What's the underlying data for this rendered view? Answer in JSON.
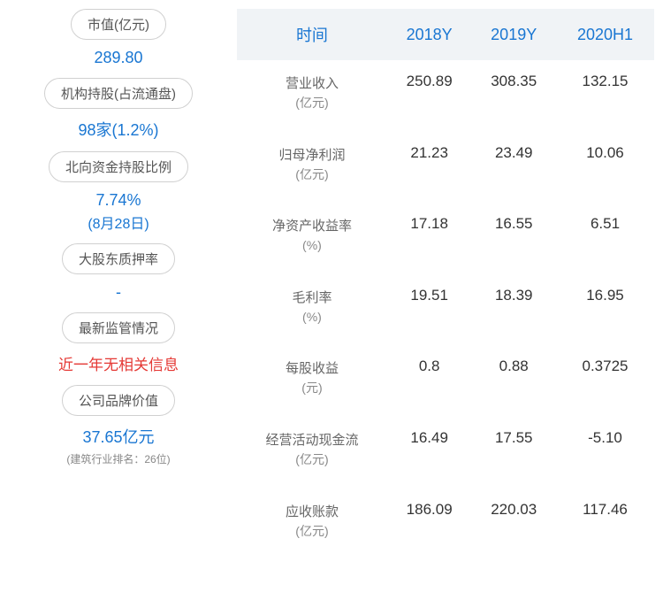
{
  "left_panel": {
    "market_cap": {
      "label": "市值(亿元)",
      "value": "289.80"
    },
    "inst_holding": {
      "label": "机构持股(占流通盘)",
      "value": "98家(1.2%)"
    },
    "north_capital": {
      "label": "北向资金持股比例",
      "value": "7.74%",
      "sub": "(8月28日)"
    },
    "pledge_rate": {
      "label": "大股东质押率",
      "value": "-"
    },
    "regulatory": {
      "label": "最新监管情况",
      "value": "近一年无相关信息"
    },
    "brand_value": {
      "label": "公司品牌价值",
      "value": "37.65亿元",
      "footnote": "(建筑行业排名：26位)"
    }
  },
  "table": {
    "header": {
      "col0": "时间",
      "col1": "2018Y",
      "col2": "2019Y",
      "col3": "2020H1"
    },
    "header_color": "#1976d2",
    "header_bg": "#f0f3f6",
    "rows": [
      {
        "label": "营业收入",
        "unit": "(亿元)",
        "v1": "250.89",
        "v2": "308.35",
        "v3": "132.15"
      },
      {
        "label": "归母净利润",
        "unit": "(亿元)",
        "v1": "21.23",
        "v2": "23.49",
        "v3": "10.06"
      },
      {
        "label": "净资产收益率",
        "unit": "(%)",
        "v1": "17.18",
        "v2": "16.55",
        "v3": "6.51"
      },
      {
        "label": "毛利率",
        "unit": "(%)",
        "v1": "19.51",
        "v2": "18.39",
        "v3": "16.95"
      },
      {
        "label": "每股收益",
        "unit": "(元)",
        "v1": "0.8",
        "v2": "0.88",
        "v3": "0.3725"
      },
      {
        "label": "经营活动现金流",
        "unit": "(亿元)",
        "v1": "16.49",
        "v2": "17.55",
        "v3": "-5.10"
      },
      {
        "label": "应收账款",
        "unit": "(亿元)",
        "v1": "186.09",
        "v2": "220.03",
        "v3": "117.46"
      }
    ]
  },
  "colors": {
    "blue": "#1976d2",
    "red": "#e53935",
    "border": "#d0d0d0",
    "text": "#333333",
    "muted": "#666666",
    "footnote": "#888888"
  }
}
